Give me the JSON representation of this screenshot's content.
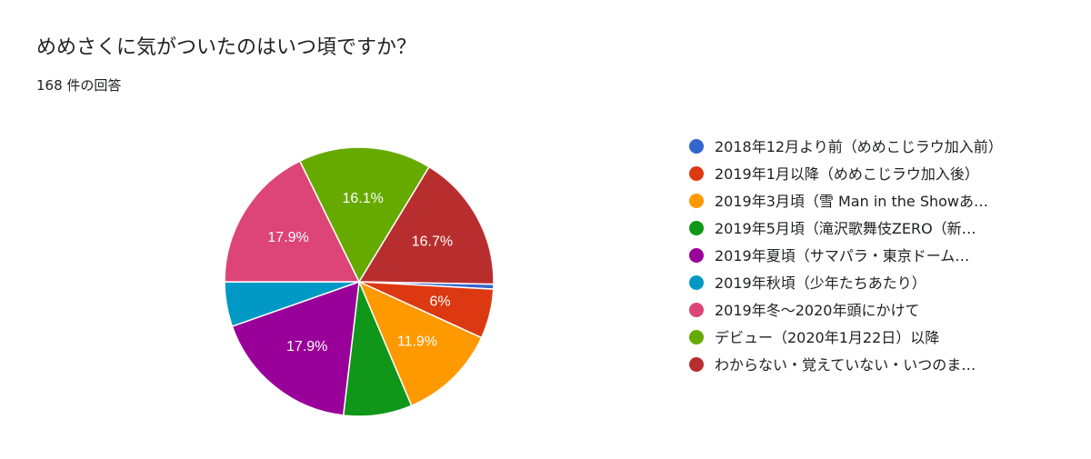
{
  "header": {
    "title": "めめさくに気がついたのはいつ頃ですか？",
    "responses": "168 件の回答"
  },
  "chart_data": {
    "type": "pie",
    "title": "めめさくに気がついたのはいつ頃ですか？",
    "legend_position": "right",
    "slices": [
      {
        "label": "2018年12月より前（めめこじラウ加入前）",
        "value": 0.6,
        "color": "#3366cc",
        "display": ""
      },
      {
        "label": "2019年1月以降（めめこじラウ加入後）",
        "value": 6.0,
        "color": "#dc3912",
        "display": "6%"
      },
      {
        "label": "2019年3月頃（雪 Man in the Showあ…",
        "value": 11.9,
        "color": "#ff9900",
        "display": "11.9%"
      },
      {
        "label": "2019年5月頃（滝沢歌舞伎ZERO（新…",
        "value": 8.3,
        "color": "#109618",
        "display": ""
      },
      {
        "label": "2019年夏頃（サマパラ・東京ドーム…",
        "value": 17.9,
        "color": "#990099",
        "display": "17.9%"
      },
      {
        "label": "2019年秋頃（少年たちあたり）",
        "value": 5.4,
        "color": "#0099c6",
        "display": ""
      },
      {
        "label": "2019年冬〜2020年頭にかけて",
        "value": 17.9,
        "color": "#dd4477",
        "display": "17.9%"
      },
      {
        "label": "デビュー（2020年1月22日）以降",
        "value": 16.1,
        "color": "#66aa00",
        "display": "16.1%"
      },
      {
        "label": "わからない・覚えていない・いつのま…",
        "value": 16.7,
        "color": "#b82e2e",
        "display": "16.7%"
      }
    ]
  }
}
